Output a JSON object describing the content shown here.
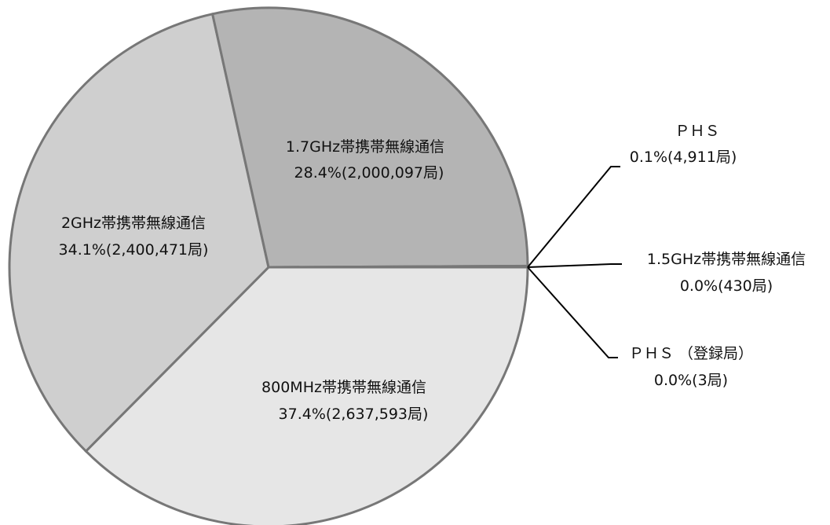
{
  "chart_data": {
    "type": "pie",
    "slices": [
      {
        "name": "800MHz帯携帯無線通信",
        "value_text": "37.4%(2,637,593局)",
        "percent": 37.4,
        "stations": 2637593,
        "color": "#e6e6e6"
      },
      {
        "name": "2GHz帯携帯無線通信",
        "value_text": "34.1%(2,400,471局)",
        "percent": 34.1,
        "stations": 2400471,
        "color": "#cfcfcf"
      },
      {
        "name": "1.7GHz帯携帯無線通信",
        "value_text": "28.4%(2,000,097局)",
        "percent": 28.4,
        "stations": 2000097,
        "color": "#b4b4b4"
      },
      {
        "name": "ＰＨＳ",
        "value_text": "0.1%(4,911局)",
        "percent": 0.1,
        "stations": 4911,
        "color": "#9a9a9a"
      },
      {
        "name": "1.5GHz帯携帯無線通信",
        "value_text": "0.0%(430局)",
        "percent": 0.0,
        "stations": 430,
        "color": "#9a9a9a"
      },
      {
        "name": "ＰＨＳ （登録局）",
        "value_text": "0.0%(3局)",
        "percent": 0.0,
        "stations": 3,
        "color": "#9a9a9a"
      }
    ]
  }
}
